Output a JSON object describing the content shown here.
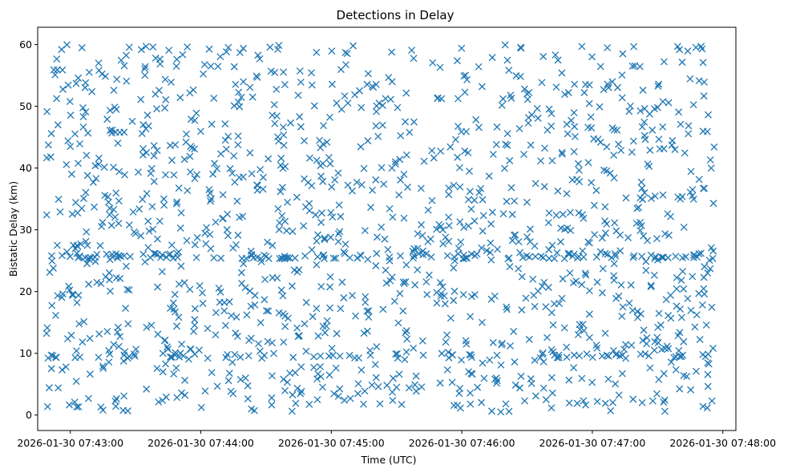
{
  "chart_data": {
    "type": "scatter",
    "title": "Detections in Delay",
    "xlabel": "Time (UTC)",
    "ylabel": "Bistatic Delay (km)",
    "marker": "x",
    "color": "#1f77b4",
    "grid": false,
    "legend": null,
    "xlim": [
      "2026-01-30 07:42:45",
      "2026-01-30 07:48:06"
    ],
    "ylim": [
      -2.5,
      62.8
    ],
    "x_ticks": [
      "2026-01-30 07:43:00",
      "2026-01-30 07:44:00",
      "2026-01-30 07:45:00",
      "2026-01-30 07:46:00",
      "2026-01-30 07:47:00",
      "2026-01-30 07:48:00"
    ],
    "y_ticks": [
      0,
      10,
      20,
      30,
      40,
      50,
      60
    ],
    "data_time_range": [
      "2026-01-30 07:42:49",
      "2026-01-30 07:47:56"
    ],
    "data_delay_range": [
      0.5,
      60
    ],
    "point_count_approx": 1500,
    "points": [
      [
        "2026-01-30 07:42:51",
        41.8
      ],
      [
        "2026-01-30 07:42:52",
        9.6
      ],
      [
        "2026-01-30 07:42:53",
        55.1
      ],
      [
        "2026-01-30 07:42:54",
        27.5
      ],
      [
        "2026-01-30 07:42:56",
        59.2
      ],
      [
        "2026-01-30 07:42:58",
        7.8
      ],
      [
        "2026-01-30 07:43:00",
        43.5
      ],
      [
        "2026-01-30 07:43:02",
        2.1
      ],
      [
        "2026-01-30 07:43:04",
        25.6
      ],
      [
        "2026-01-30 07:43:06",
        48.3
      ],
      [
        "2026-01-30 07:43:09",
        12.4
      ],
      [
        "2026-01-30 07:43:11",
        33.7
      ],
      [
        "2026-01-30 07:43:13",
        57.0
      ],
      [
        "2026-01-30 07:43:15",
        0.8
      ],
      [
        "2026-01-30 07:43:18",
        21.9
      ],
      [
        "2026-01-30 07:43:20",
        52.6
      ],
      [
        "2026-01-30 07:43:22",
        14.2
      ],
      [
        "2026-01-30 07:43:25",
        38.9
      ],
      [
        "2026-01-30 07:43:27",
        9.5
      ],
      [
        "2026-01-30 07:43:30",
        29.4
      ],
      [
        "2026-01-30 07:43:33",
        45.6
      ],
      [
        "2026-01-30 07:43:35",
        4.2
      ],
      [
        "2026-01-30 07:43:38",
        59.6
      ],
      [
        "2026-01-30 07:43:40",
        26.0
      ],
      [
        "2026-01-30 07:43:43",
        35.0
      ],
      [
        "2026-01-30 07:43:46",
        17.3
      ],
      [
        "2026-01-30 07:43:49",
        57.6
      ],
      [
        "2026-01-30 07:43:52",
        9.6
      ],
      [
        "2026-01-30 07:43:55",
        41.9
      ],
      [
        "2026-01-30 07:43:58",
        25.5
      ],
      [
        "2026-01-30 07:44:02",
        3.9
      ],
      [
        "2026-01-30 07:44:06",
        51.3
      ],
      [
        "2026-01-30 07:44:10",
        31.8
      ],
      [
        "2026-01-30 07:44:14",
        16.1
      ],
      [
        "2026-01-30 07:44:18",
        58.7
      ],
      [
        "2026-01-30 07:44:22",
        9.6
      ],
      [
        "2026-01-30 07:44:26",
        36.4
      ],
      [
        "2026-01-30 07:44:30",
        25.7
      ],
      [
        "2026-01-30 07:44:34",
        47.2
      ],
      [
        "2026-01-30 07:44:38",
        5.8
      ],
      [
        "2026-01-30 07:44:42",
        20.9
      ],
      [
        "2026-01-30 07:44:46",
        53.9
      ],
      [
        "2026-01-30 07:44:50",
        33.1
      ],
      [
        "2026-01-30 07:44:54",
        12.8
      ],
      [
        "2026-01-30 07:44:58",
        44.2
      ],
      [
        "2026-01-30 07:45:02",
        25.4
      ],
      [
        "2026-01-30 07:45:06",
        2.4
      ],
      [
        "2026-01-30 07:45:10",
        59.8
      ],
      [
        "2026-01-30 07:45:14",
        37.3
      ],
      [
        "2026-01-30 07:45:18",
        9.7
      ],
      [
        "2026-01-30 07:45:22",
        50.5
      ],
      [
        "2026-01-30 07:45:26",
        26.8
      ],
      [
        "2026-01-30 07:45:30",
        4.5
      ],
      [
        "2026-01-30 07:45:34",
        47.5
      ],
      [
        "2026-01-30 07:45:38",
        25.8
      ],
      [
        "2026-01-30 07:45:42",
        12.0
      ],
      [
        "2026-01-30 07:45:46",
        25.6
      ],
      [
        "2026-01-30 07:45:50",
        56.3
      ],
      [
        "2026-01-30 07:45:54",
        35.7
      ],
      [
        "2026-01-30 07:45:58",
        1.6
      ],
      [
        "2026-01-30 07:46:02",
        45.9
      ],
      [
        "2026-01-30 07:46:06",
        19.5
      ],
      [
        "2026-01-30 07:46:10",
        32.3
      ],
      [
        "2026-01-30 07:46:14",
        57.9
      ],
      [
        "2026-01-30 07:46:18",
        8.1
      ],
      [
        "2026-01-30 07:46:22",
        41.2
      ],
      [
        "2026-01-30 07:46:26",
        23.7
      ],
      [
        "2026-01-30 07:46:30",
        52.0
      ],
      [
        "2026-01-30 07:46:34",
        3.1
      ],
      [
        "2026-01-30 07:46:38",
        37.0
      ],
      [
        "2026-01-30 07:46:42",
        14.6
      ],
      [
        "2026-01-30 07:46:46",
        55.4
      ],
      [
        "2026-01-30 07:46:50",
        29.9
      ],
      [
        "2026-01-30 07:46:54",
        9.6
      ],
      [
        "2026-01-30 07:46:58",
        46.6
      ],
      [
        "2026-01-30 07:47:02",
        25.6
      ],
      [
        "2026-01-30 07:47:06",
        1.9
      ],
      [
        "2026-01-30 07:47:10",
        38.4
      ],
      [
        "2026-01-30 07:47:14",
        58.5
      ],
      [
        "2026-01-30 07:47:18",
        11.3
      ],
      [
        "2026-01-30 07:47:22",
        31.2
      ],
      [
        "2026-01-30 07:47:26",
        9.6
      ],
      [
        "2026-01-30 07:47:30",
        49.8
      ],
      [
        "2026-01-30 07:47:34",
        18.7
      ],
      [
        "2026-01-30 07:47:38",
        43.0
      ],
      [
        "2026-01-30 07:47:42",
        6.4
      ],
      [
        "2026-01-30 07:47:46",
        35.5
      ],
      [
        "2026-01-30 07:47:50",
        59.7
      ],
      [
        "2026-01-30 07:47:53",
        23.0
      ],
      [
        "2026-01-30 07:47:55",
        2.3
      ],
      [
        "2026-01-30 07:47:56",
        43.4
      ]
    ]
  }
}
